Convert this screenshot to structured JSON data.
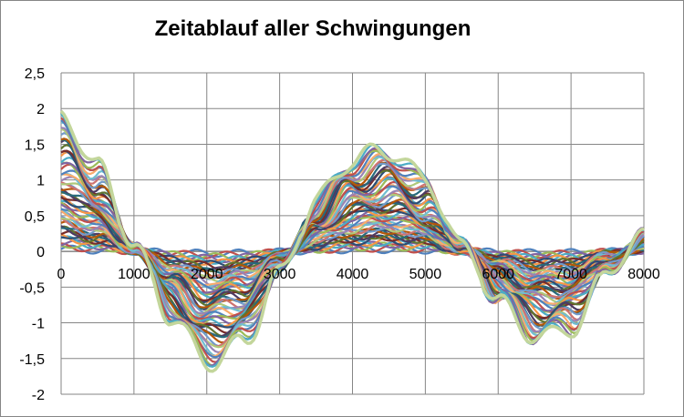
{
  "chart_data": {
    "type": "line",
    "title": "Zeitablauf aller Schwingungen",
    "xlabel": "",
    "ylabel": "",
    "xlim": [
      0,
      8000
    ],
    "ylim": [
      -2,
      2.5
    ],
    "x_ticks": [
      "0",
      "1000",
      "2000",
      "3000",
      "4000",
      "5000",
      "6000",
      "7000",
      "8000"
    ],
    "y_ticks": [
      "2,5",
      "2",
      "1,5",
      "1",
      "0,5",
      "0",
      "-0,5",
      "-1",
      "-1,5",
      "-2"
    ],
    "grid": true,
    "legend": "none",
    "series_count_estimate": 60,
    "envelope": {
      "x": [
        0,
        500,
        1000,
        1500,
        2000,
        2500,
        3000,
        3500,
        4000,
        4500,
        5000,
        5500,
        6000,
        6500,
        7000,
        7500,
        8000
      ],
      "y_max": [
        1.9,
        1.2,
        0.1,
        -0.9,
        -1.55,
        -1.3,
        -0.3,
        0.7,
        1.3,
        1.42,
        1.0,
        0.1,
        -0.7,
        -1.2,
        -1.1,
        -0.3,
        0.25
      ]
    },
    "colors": [
      "#4f81bd",
      "#c0504d",
      "#9bbb59",
      "#8064a2",
      "#4bacc6",
      "#f79646",
      "#2c4d75",
      "#772c2a",
      "#5f7530",
      "#4d3b62",
      "#276a7c",
      "#b65708",
      "#729aca",
      "#cd7371",
      "#afc97a",
      "#9983b5",
      "#6fbdd1",
      "#f9ab6b"
    ]
  }
}
